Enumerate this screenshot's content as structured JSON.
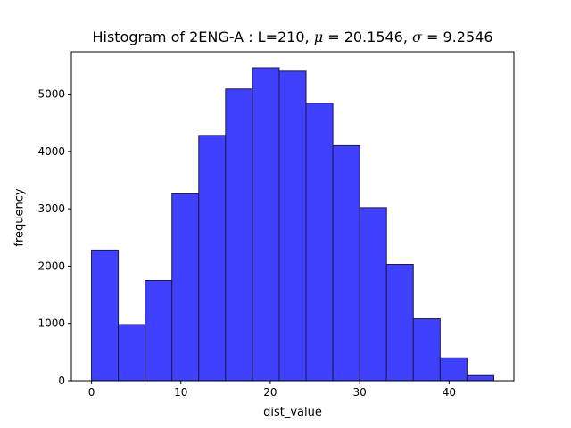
{
  "chart_data": {
    "type": "bar",
    "title": {
      "prefix": "Histogram of 2ENG-A : L=210, ",
      "mu_symbol": "μ",
      "mu_text": " = 20.1546, ",
      "sigma_symbol": "σ",
      "sigma_text": " = 9.2546"
    },
    "xlabel": "dist_value",
    "ylabel": "frequency",
    "xlim": [
      -2.25,
      47.25
    ],
    "ylim": [
      0,
      5740
    ],
    "xticks": [
      0,
      10,
      20,
      30,
      40
    ],
    "yticks": [
      0,
      1000,
      2000,
      3000,
      4000,
      5000
    ],
    "bin_edges": [
      0,
      3,
      6,
      9,
      12,
      15,
      18,
      21,
      24,
      27,
      30,
      33,
      36,
      39,
      42,
      45
    ],
    "values": [
      2280,
      980,
      1750,
      3260,
      4280,
      5090,
      5460,
      5400,
      4840,
      4100,
      3020,
      2030,
      1080,
      400,
      90
    ],
    "bar_color": "#4040ff",
    "edge_color": "#1a1a4d",
    "grid": false
  }
}
